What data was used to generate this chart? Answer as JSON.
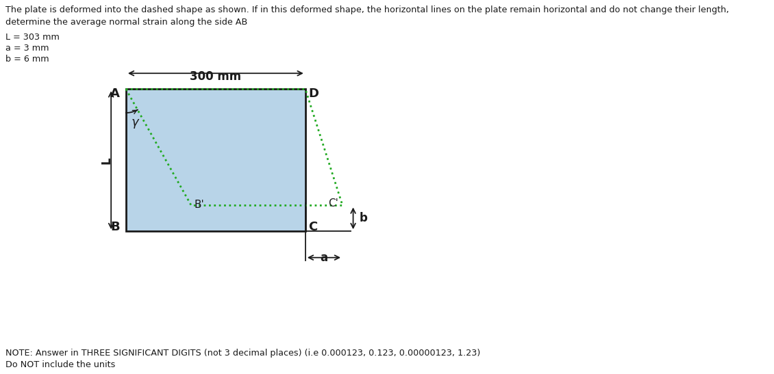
{
  "title_line1": "The plate is deformed into the dashed shape as shown. If in this deformed shape, the horizontal lines on the plate remain horizontal and do not change their length,",
  "title_line2": "determine the average normal strain along the side AB",
  "param_L": "L = 303 mm",
  "param_a": "a = 3 mm",
  "param_b": "b = 6 mm",
  "note_line1": "NOTE: Answer in THREE SIGNIFICANT DIGITS (not 3 decimal places) (i.e 0.000123, 0.123, 0.00000123, 1.23)",
  "note_line2": "Do NOT include the units",
  "rect_color": "#b8d4e8",
  "rect_edge_color": "#1a1a1a",
  "dashed_color": "#22aa22",
  "label_A": "A",
  "label_B": "B",
  "label_C": "C",
  "label_D": "D",
  "label_Bprime": "B'",
  "label_Cprime": "C'",
  "label_L": "L",
  "label_a": "a",
  "label_b": "b",
  "label_gamma": "γ",
  "dim_300": "300 mm"
}
